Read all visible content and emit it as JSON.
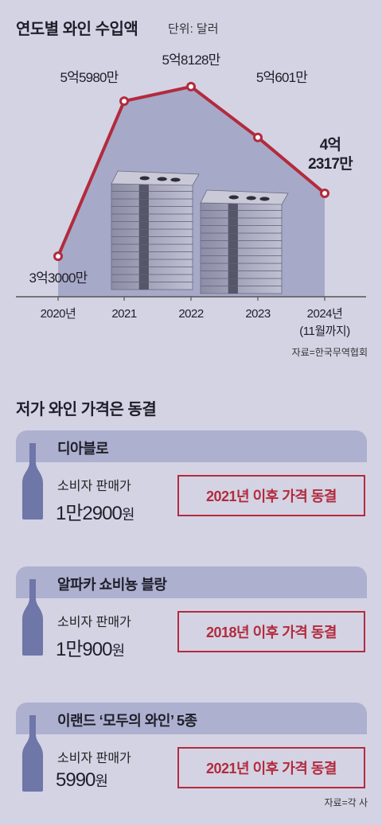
{
  "header": {
    "title": "연도별 와인 수입액",
    "unit": "단위: 달러"
  },
  "chart_data": {
    "type": "line",
    "title": "연도별 와인 수입액",
    "unit": "단위: 달러",
    "categories": [
      "2020년",
      "2021",
      "2022",
      "2023",
      "2024년"
    ],
    "category_notes": [
      "",
      "",
      "",
      "",
      "(11월까지)"
    ],
    "values": [
      330000000,
      559800000,
      581280000,
      506010000,
      423170000
    ],
    "data_labels": [
      "3억3000만",
      "5억5980만",
      "5억8128만",
      "5억601만",
      "4억\n2317만"
    ],
    "ylim": [
      270000000,
      600000000
    ],
    "line_color": "#b22b3d",
    "fill_color": "#a7a9c8",
    "grid": false,
    "source": "자료=한국무역협회"
  },
  "section2": {
    "title": "저가 와인 가격은 동결",
    "cards": [
      {
        "name": "디아블로",
        "label": "소비자 판매가",
        "price_main": "1만2900",
        "price_unit": "원",
        "freeze": "2021년 이후 가격 동결"
      },
      {
        "name": "알파카 쇼비뇽 블랑",
        "label": "소비자 판매가",
        "price_main": "1만900",
        "price_unit": "원",
        "freeze": "2018년 이후 가격 동결"
      },
      {
        "name": "이랜드 ‘모두의 와인’ 5종",
        "label": "소비자 판매가",
        "price_main": "5990",
        "price_unit": "원",
        "freeze": "2021년 이후 가격 동결"
      }
    ],
    "source": "자료=각 사"
  },
  "colors": {
    "background": "#d4d3e4",
    "accent_red": "#b22b3d",
    "header_band": "#aeb0d0",
    "bottle": "#6f76a8"
  },
  "icons": {
    "bottle": "wine-bottle-icon",
    "money": "money-stack-icon"
  }
}
